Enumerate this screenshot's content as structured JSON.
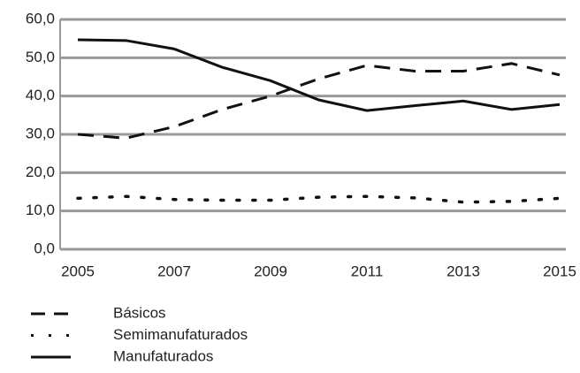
{
  "chart_data": {
    "type": "line",
    "x": [
      2005,
      2006,
      2007,
      2008,
      2009,
      2010,
      2011,
      2012,
      2013,
      2014,
      2015
    ],
    "xlim": [
      2005,
      2015
    ],
    "xticks": [
      2005,
      2007,
      2009,
      2011,
      2013,
      2015
    ],
    "ylim": [
      0,
      60
    ],
    "yticks": [
      {
        "value": 0,
        "label": "0,0"
      },
      {
        "value": 10,
        "label": "10,0"
      },
      {
        "value": 20,
        "label": "20,0"
      },
      {
        "value": 30,
        "label": "30,0"
      },
      {
        "value": 40,
        "label": "40,0"
      },
      {
        "value": 50,
        "label": "50,0"
      },
      {
        "value": 60,
        "label": "60,0"
      }
    ],
    "grid": true,
    "legend": "bottom",
    "series": [
      {
        "name": "Básicos",
        "color": "#111111",
        "dash": "dashed",
        "values": [
          30,
          29,
          32,
          36.5,
          40,
          44.5,
          48,
          46.5,
          46.5,
          48.5,
          45.5
        ]
      },
      {
        "name": "Semimanufaturados",
        "color": "#111111",
        "dash": "dotted",
        "values": [
          13.3,
          13.8,
          13,
          12.8,
          12.8,
          13.6,
          13.8,
          13.4,
          12.3,
          12.5,
          13.3
        ]
      },
      {
        "name": "Manufaturados",
        "color": "#111111",
        "dash": "solid",
        "values": [
          54.7,
          54.5,
          52.3,
          47.5,
          44,
          39,
          36.2,
          37.5,
          38.7,
          36.5,
          37.8
        ]
      }
    ]
  }
}
